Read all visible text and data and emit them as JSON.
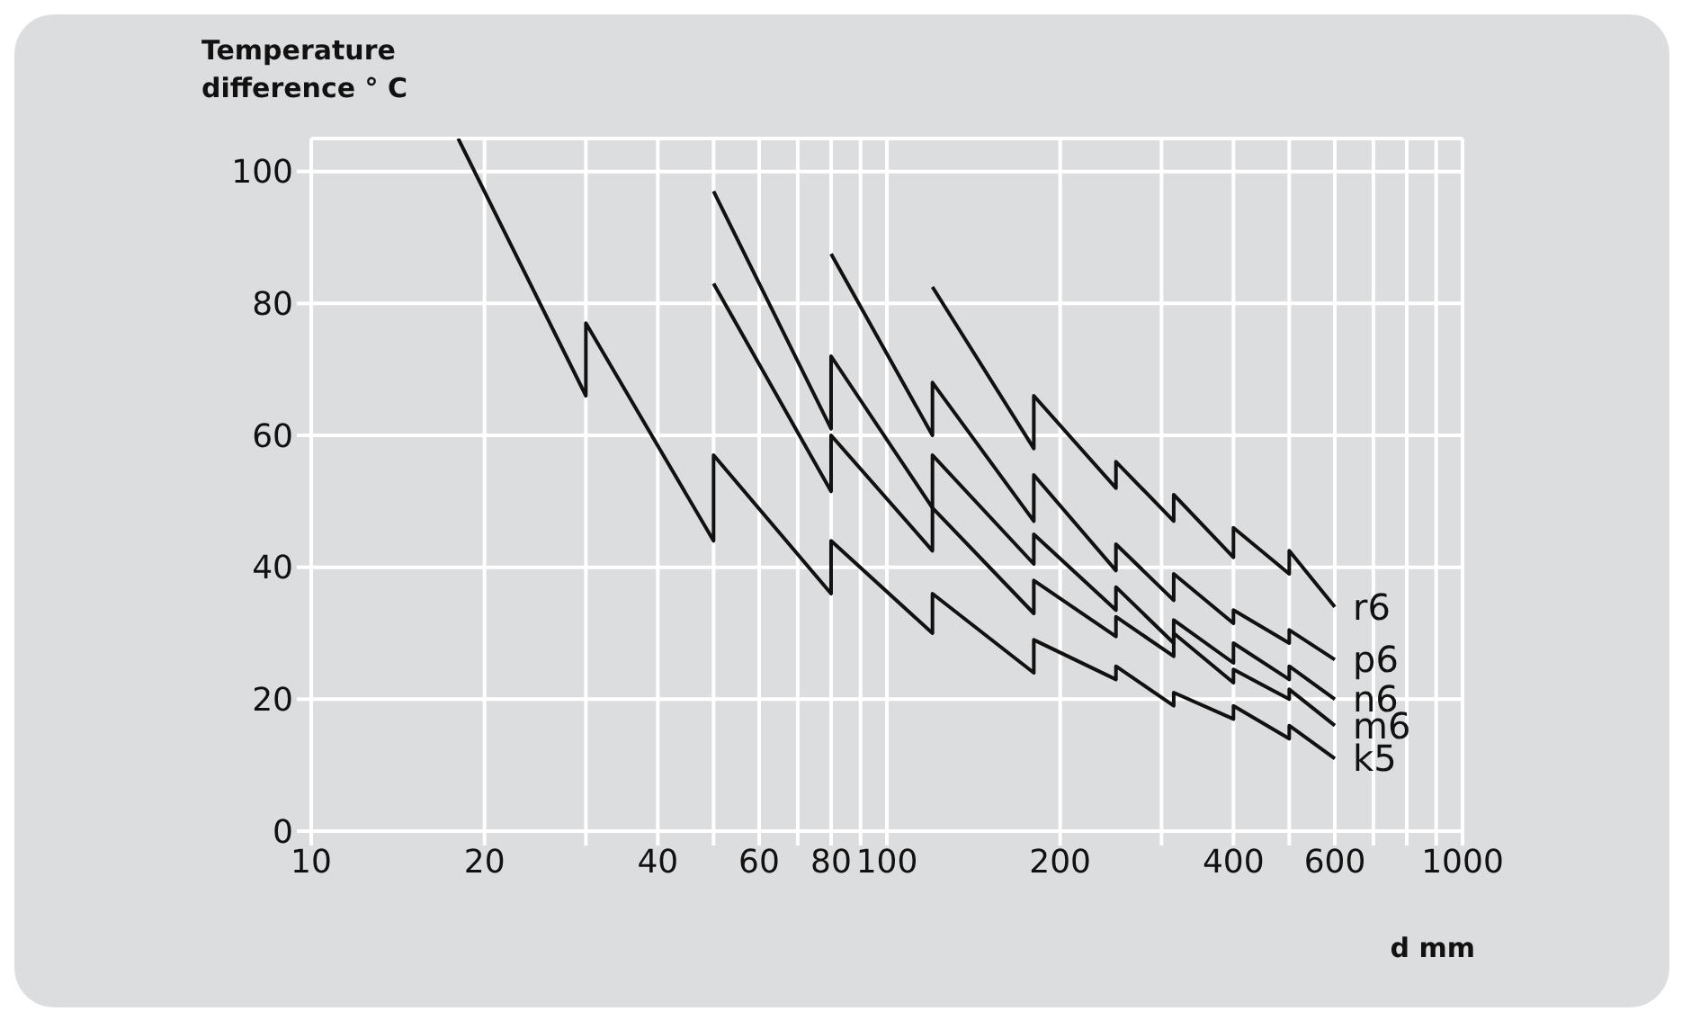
{
  "chart_data": {
    "type": "line",
    "ylabel": "Temperature difference ° C",
    "xlabel": "d mm",
    "log": "x",
    "grid": true,
    "xlim": [
      10,
      1000
    ],
    "ylim": [
      0,
      105
    ],
    "xticks": [
      10,
      20,
      {
        "value": 30,
        "label": null
      },
      40,
      {
        "value": 50,
        "label": null
      },
      60,
      {
        "value": 70,
        "label": null
      },
      80,
      {
        "value": 90,
        "label": null
      },
      100,
      200,
      {
        "value": 300,
        "label": null
      },
      400,
      {
        "value": 500,
        "label": null
      },
      600,
      {
        "value": 700,
        "label": null
      },
      {
        "value": 800,
        "label": null
      },
      {
        "value": 900,
        "label": null
      },
      1000
    ],
    "yticks": [
      0,
      20,
      40,
      60,
      80,
      100
    ],
    "line_style": "solid",
    "series": [
      {
        "name": "r6",
        "color": "#111111",
        "x": [
          120,
          180,
          180,
          250,
          250,
          315,
          315,
          400,
          400,
          500,
          500,
          600
        ],
        "values": [
          82.5,
          58,
          66,
          52,
          56,
          47,
          51,
          41.5,
          46,
          39,
          42.5,
          34
        ]
      },
      {
        "name": "p6",
        "color": "#111111",
        "x": [
          80,
          120,
          120,
          180,
          180,
          250,
          250,
          315,
          315,
          400,
          400,
          500,
          500,
          600
        ],
        "values": [
          87.5,
          60,
          68,
          47,
          54,
          39.5,
          43.5,
          35,
          39,
          31.5,
          33.5,
          28.5,
          30.5,
          26
        ]
      },
      {
        "name": "n6",
        "color": "#111111",
        "x": [
          50,
          80,
          80,
          120,
          120,
          180,
          180,
          250,
          250,
          315,
          315,
          400,
          400,
          500,
          500,
          600
        ],
        "values": [
          97,
          61,
          72,
          49,
          57,
          40.5,
          45,
          33.5,
          37,
          28.5,
          32,
          25.5,
          28.5,
          23,
          25,
          20
        ]
      },
      {
        "name": "m6",
        "color": "#111111",
        "x": [
          50,
          80,
          80,
          120,
          120,
          180,
          180,
          250,
          250,
          315,
          315,
          400,
          400,
          500,
          500,
          600
        ],
        "values": [
          83,
          51.5,
          60,
          42.5,
          49,
          33,
          38,
          29.5,
          32.5,
          26.5,
          30,
          22.5,
          24.5,
          20,
          21.5,
          16
        ]
      },
      {
        "name": "k5",
        "color": "#111111",
        "x": [
          18,
          30,
          30,
          50,
          50,
          80,
          80,
          120,
          120,
          180,
          180,
          250,
          250,
          315,
          315,
          400,
          400,
          500,
          500,
          600
        ],
        "values": [
          105,
          66,
          77,
          44,
          57,
          36,
          44,
          30,
          36,
          24,
          29,
          23,
          25,
          19,
          21,
          17,
          19,
          14,
          16,
          11
        ]
      }
    ]
  }
}
